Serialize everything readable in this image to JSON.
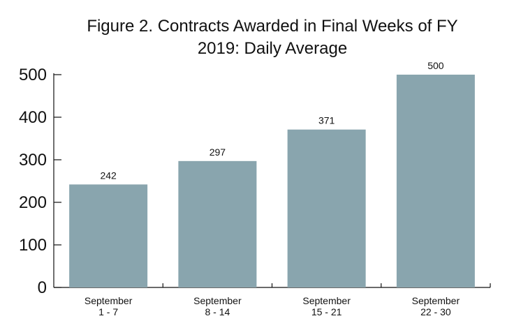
{
  "chart_data": {
    "type": "bar",
    "title_lines": [
      "Figure 2. Contracts Awarded in Final Weeks of FY",
      "2019: Daily Average"
    ],
    "xlabel": "",
    "ylabel": "",
    "categories": [
      [
        "September",
        "1 - 7"
      ],
      [
        "September",
        "8 - 14"
      ],
      [
        "September",
        "15 - 21"
      ],
      [
        "September",
        "22 - 30"
      ]
    ],
    "values": [
      242,
      297,
      371,
      500
    ],
    "data_labels": [
      "242",
      "297",
      "371",
      "500"
    ],
    "ylim": [
      0,
      500
    ],
    "yticks": [
      0,
      100,
      200,
      300,
      400,
      500
    ],
    "grid": false,
    "legend": "none",
    "bar_color": "#89a5ae"
  }
}
